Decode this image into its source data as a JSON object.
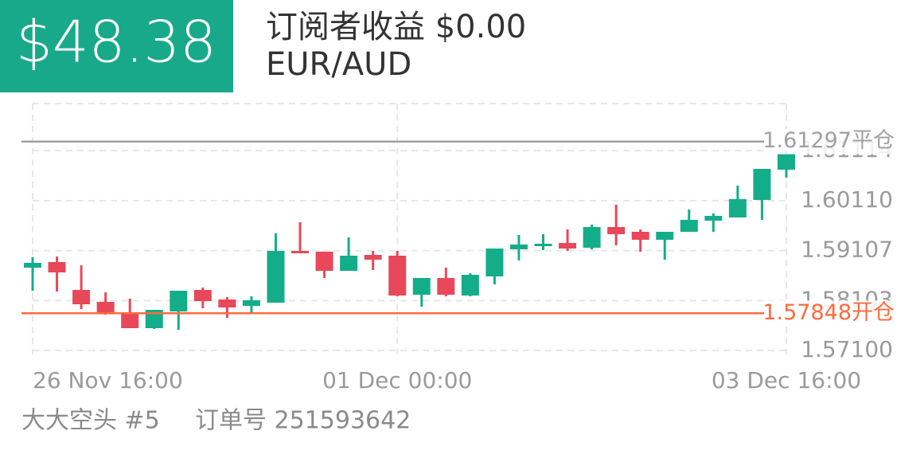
{
  "header": {
    "amount": "$48.38",
    "title": "订阅者收益 $0.00",
    "symbol": "EUR/AUD"
  },
  "chart_data": {
    "type": "candlestick",
    "categories": [
      "26 Nov  16:00",
      null,
      null,
      null,
      null,
      null,
      null,
      null,
      null,
      null,
      null,
      null,
      null,
      null,
      null,
      "01 Dec  00:00",
      null,
      null,
      null,
      null,
      null,
      null,
      null,
      null,
      null,
      null,
      null,
      null,
      null,
      null,
      null,
      "03 Dec  16:00"
    ],
    "open": [
      1.58764,
      1.58876,
      1.58316,
      1.58076,
      1.57836,
      1.57548,
      1.57884,
      1.58316,
      1.58124,
      1.57996,
      1.5806,
      1.591,
      1.59084,
      1.587,
      1.5902,
      1.59004,
      1.5822,
      1.58556,
      1.58204,
      1.58588,
      1.59132,
      1.59196,
      1.5926,
      1.59164,
      1.5958,
      1.59484,
      1.59324,
      1.59484,
      1.59708,
      1.59772,
      1.60124,
      1.60732
    ],
    "high": [
      1.58972,
      1.58988,
      1.58812,
      1.58268,
      1.5814,
      1.57916,
      1.583,
      1.58364,
      1.58172,
      1.58188,
      1.59452,
      1.59676,
      1.59084,
      1.59372,
      1.591,
      1.591,
      1.58556,
      1.58764,
      1.58652,
      1.59148,
      1.5942,
      1.59436,
      1.59532,
      1.59628,
      1.60028,
      1.59532,
      1.59484,
      1.59932,
      1.59852,
      1.60412,
      1.60748,
      1.611
    ],
    "low": [
      1.583,
      1.58284,
      1.57932,
      1.5782,
      1.57548,
      1.57532,
      1.57516,
      1.57948,
      1.57756,
      1.57868,
      1.5806,
      1.59052,
      1.58556,
      1.587,
      1.58716,
      1.58188,
      1.5798,
      1.58188,
      1.58188,
      1.58428,
      1.58908,
      1.59116,
      1.591,
      1.59132,
      1.59212,
      1.59084,
      1.58924,
      1.59484,
      1.59484,
      1.59772,
      1.59724,
      1.60572
    ],
    "close": [
      1.5886,
      1.58668,
      1.58028,
      1.57852,
      1.57548,
      1.57916,
      1.583,
      1.58092,
      1.57964,
      1.58108,
      1.591,
      1.59052,
      1.587,
      1.59004,
      1.58924,
      1.58204,
      1.58556,
      1.5822,
      1.5862,
      1.59148,
      1.59228,
      1.59244,
      1.59148,
      1.5958,
      1.59436,
      1.59324,
      1.59484,
      1.59724,
      1.59804,
      1.6014,
      1.60748,
      1.61052
    ],
    "up_color": "#14ad8a",
    "down_color": "#e8485a",
    "ylim": [
      1.5702,
      1.6206
    ],
    "yticks": [
      {
        "value": 1.571,
        "label": "1.57100"
      },
      1.58103,
      1.59107,
      {
        "value": 1.6011,
        "label": "1.60110"
      },
      1.61114
    ],
    "grid": true,
    "reference_lines": [
      {
        "value": 1.61297,
        "label": "1.61297平仓",
        "color": "#a0a0a0"
      },
      {
        "value": 1.57848,
        "label": "1.57848开仓",
        "color": "#ff6a3d"
      }
    ]
  },
  "footer": {
    "trader": "大大空头 #5",
    "order": "订单号 251593642"
  }
}
